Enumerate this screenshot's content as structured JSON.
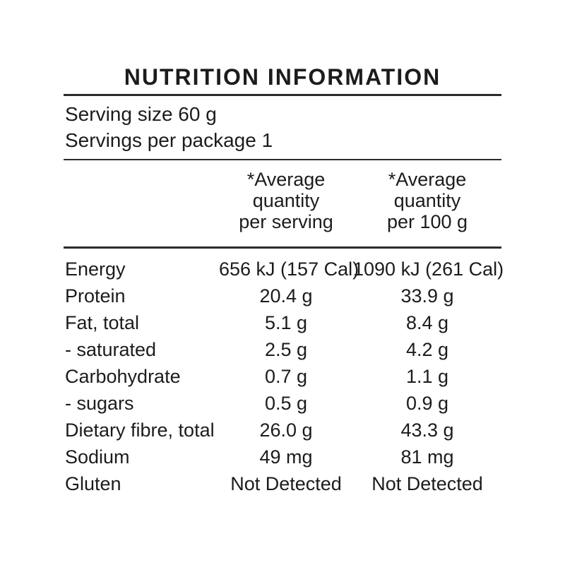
{
  "title": "NUTRITION INFORMATION",
  "serving_info": {
    "serving_size": "Serving size 60 g",
    "servings_per_package": "Servings per package 1"
  },
  "columns": {
    "per_serving": {
      "lines": [
        "*Average",
        "quantity",
        "per serving"
      ]
    },
    "per_100g": {
      "lines": [
        "*Average",
        "quantity",
        "per 100 g"
      ]
    }
  },
  "table": {
    "rows": [
      {
        "label": "Energy",
        "per_serving": "656 kJ (157 Cal)",
        "per_100g": "1090 kJ (261 Cal)"
      },
      {
        "label": "Protein",
        "per_serving": "20.4 g",
        "per_100g": "33.9 g"
      },
      {
        "label": "Fat, total",
        "per_serving": "5.1 g",
        "per_100g": "8.4 g"
      },
      {
        "label": "- saturated",
        "per_serving": "2.5 g",
        "per_100g": "4.2 g"
      },
      {
        "label": "Carbohydrate",
        "per_serving": "0.7 g",
        "per_100g": "1.1 g"
      },
      {
        "label": "- sugars",
        "per_serving": "0.5 g",
        "per_100g": "0.9 g"
      },
      {
        "label": "Dietary fibre, total",
        "per_serving": "26.0 g",
        "per_100g": "43.3 g"
      },
      {
        "label": "Sodium",
        "per_serving": "49 mg",
        "per_100g": "81 mg"
      },
      {
        "label": "Gluten",
        "per_serving": "Not Detected",
        "per_100g": "Not Detected"
      }
    ]
  },
  "colors": {
    "text": "#1c1c1c",
    "rule": "#2b2b2b",
    "background": "#ffffff"
  }
}
